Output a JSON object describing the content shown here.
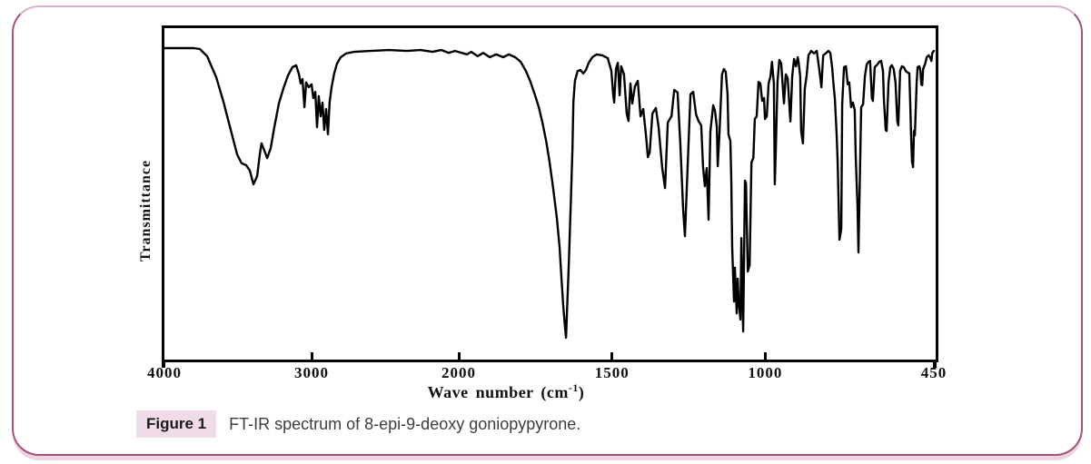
{
  "figure": {
    "caption_label": "Figure 1",
    "caption_text": "FT-IR spectrum of 8-epi-9-deoxy goniopypyrone."
  },
  "theme": {
    "frame_border": "#a4527e",
    "frame_border_top": "#d9b0c9",
    "frame_bottom_band": "#ecd4e2",
    "caption_badge_bg": "#efdce8",
    "line_color": "#000000"
  },
  "chart_data": {
    "type": "line",
    "title": "",
    "xlabel_parts": {
      "prefix": "Wave number (cm",
      "sup": "-1",
      "suffix": ")"
    },
    "ylabel": "Transmittance",
    "x_axis": {
      "ticks": [
        4000,
        3000,
        2000,
        1500,
        1000,
        450
      ],
      "direction": "reversed",
      "scale_note": "split scale: cm-1 compressed 2x above 2000"
    },
    "y_axis": {
      "label": "Transmittance",
      "ticks": [],
      "ylim": [
        0,
        100
      ]
    },
    "grid": false,
    "legend": "none",
    "series": [
      {
        "name": "FT-IR spectrum of 8-epi-9-deoxy goniopypyrone",
        "x_unit": "cm-1",
        "y_unit": "percent transmittance (estimated)",
        "points": [
          [
            4000,
            100
          ],
          [
            3800,
            100
          ],
          [
            3759,
            99.7
          ],
          [
            3710,
            97.4
          ],
          [
            3648,
            90.7
          ],
          [
            3599,
            82.8
          ],
          [
            3543,
            72.7
          ],
          [
            3506,
            66
          ],
          [
            3475,
            63.1
          ],
          [
            3444,
            62.5
          ],
          [
            3420,
            60.8
          ],
          [
            3395,
            56.4
          ],
          [
            3370,
            59
          ],
          [
            3352,
            66
          ],
          [
            3340,
            69.5
          ],
          [
            3321,
            67.2
          ],
          [
            3302,
            64.8
          ],
          [
            3278,
            68
          ],
          [
            3253,
            74.7
          ],
          [
            3222,
            82.3
          ],
          [
            3191,
            87.2
          ],
          [
            3160,
            91.3
          ],
          [
            3130,
            93.9
          ],
          [
            3105,
            94.5
          ],
          [
            3086,
            91.6
          ],
          [
            3074,
            88.7
          ],
          [
            3062,
            90.1
          ],
          [
            3049,
            81.1
          ],
          [
            3037,
            89
          ],
          [
            3019,
            87.5
          ],
          [
            3000,
            88.4
          ],
          [
            2988,
            84
          ],
          [
            2975,
            86
          ],
          [
            2963,
            74.7
          ],
          [
            2951,
            84.6
          ],
          [
            2938,
            78.2
          ],
          [
            2926,
            82.6
          ],
          [
            2914,
            73.8
          ],
          [
            2901,
            80.5
          ],
          [
            2889,
            72.4
          ],
          [
            2877,
            82.8
          ],
          [
            2864,
            87.5
          ],
          [
            2846,
            91.9
          ],
          [
            2827,
            95.1
          ],
          [
            2802,
            97.1
          ],
          [
            2765,
            98.3
          ],
          [
            2710,
            98.8
          ],
          [
            2599,
            99.1
          ],
          [
            2475,
            99.4
          ],
          [
            2352,
            99.1
          ],
          [
            2259,
            99.4
          ],
          [
            2179,
            98.8
          ],
          [
            2117,
            99.4
          ],
          [
            2068,
            98.5
          ],
          [
            2025,
            99.1
          ],
          [
            1991,
            98.5
          ],
          [
            1973,
            98
          ],
          [
            1959,
            98.8
          ],
          [
            1938,
            97.4
          ],
          [
            1920,
            98.5
          ],
          [
            1899,
            97.1
          ],
          [
            1878,
            98
          ],
          [
            1855,
            97.1
          ],
          [
            1837,
            98
          ],
          [
            1816,
            97.1
          ],
          [
            1798,
            95.6
          ],
          [
            1781,
            92.7
          ],
          [
            1766,
            89.2
          ],
          [
            1751,
            84.9
          ],
          [
            1739,
            81.1
          ],
          [
            1727,
            76.2
          ],
          [
            1715,
            70.3
          ],
          [
            1704,
            63.7
          ],
          [
            1692,
            55.2
          ],
          [
            1680,
            45.6
          ],
          [
            1671,
            36.3
          ],
          [
            1665,
            26.7
          ],
          [
            1659,
            17.2
          ],
          [
            1653,
            10.2
          ],
          [
            1650,
            7.3
          ],
          [
            1647,
            15.1
          ],
          [
            1641,
            30.5
          ],
          [
            1635,
            49.1
          ],
          [
            1629,
            68
          ],
          [
            1626,
            82.8
          ],
          [
            1621,
            89.5
          ],
          [
            1612,
            92.7
          ],
          [
            1603,
            93
          ],
          [
            1594,
            91.9
          ],
          [
            1585,
            93
          ],
          [
            1576,
            95.3
          ],
          [
            1564,
            97.1
          ],
          [
            1550,
            98
          ],
          [
            1532,
            97.7
          ],
          [
            1514,
            96.8
          ],
          [
            1502,
            92.7
          ],
          [
            1496,
            84.9
          ],
          [
            1493,
            82.6
          ],
          [
            1487,
            93.3
          ],
          [
            1481,
            95.3
          ],
          [
            1475,
            84.9
          ],
          [
            1470,
            94.2
          ],
          [
            1461,
            91.6
          ],
          [
            1452,
            79.1
          ],
          [
            1446,
            76.7
          ],
          [
            1440,
            88.7
          ],
          [
            1434,
            82.3
          ],
          [
            1425,
            87.8
          ],
          [
            1416,
            89.5
          ],
          [
            1407,
            78.2
          ],
          [
            1398,
            80.5
          ],
          [
            1389,
            71.8
          ],
          [
            1383,
            65.1
          ],
          [
            1377,
            66.6
          ],
          [
            1368,
            79.1
          ],
          [
            1357,
            80.8
          ],
          [
            1348,
            74.7
          ],
          [
            1336,
            61.6
          ],
          [
            1327,
            55.2
          ],
          [
            1318,
            76.2
          ],
          [
            1306,
            78.2
          ],
          [
            1297,
            86.6
          ],
          [
            1286,
            85.8
          ],
          [
            1277,
            68.9
          ],
          [
            1268,
            48.5
          ],
          [
            1262,
            39.8
          ],
          [
            1253,
            63.1
          ],
          [
            1244,
            85.2
          ],
          [
            1235,
            86
          ],
          [
            1226,
            78.8
          ],
          [
            1218,
            76.7
          ],
          [
            1209,
            75.3
          ],
          [
            1203,
            62.2
          ],
          [
            1197,
            55.8
          ],
          [
            1191,
            61.6
          ],
          [
            1185,
            45.1
          ],
          [
            1179,
            73.3
          ],
          [
            1170,
            81.7
          ],
          [
            1164,
            79.9
          ],
          [
            1158,
            74.7
          ],
          [
            1155,
            62.2
          ],
          [
            1149,
            73.3
          ],
          [
            1141,
            91.6
          ],
          [
            1135,
            93.3
          ],
          [
            1129,
            92.4
          ],
          [
            1123,
            85.2
          ],
          [
            1120,
            72.4
          ],
          [
            1114,
            70.3
          ],
          [
            1111,
            58.1
          ],
          [
            1108,
            36.3
          ],
          [
            1102,
            18.9
          ],
          [
            1099,
            29.7
          ],
          [
            1093,
            15.1
          ],
          [
            1090,
            26.2
          ],
          [
            1087,
            18.9
          ],
          [
            1081,
            13.1
          ],
          [
            1078,
            39.2
          ],
          [
            1072,
            9.3
          ],
          [
            1066,
            57.6
          ],
          [
            1063,
            56.7
          ],
          [
            1057,
            28.5
          ],
          [
            1051,
            30.5
          ],
          [
            1045,
            63.4
          ],
          [
            1039,
            64.8
          ],
          [
            1034,
            77.3
          ],
          [
            1028,
            78.2
          ],
          [
            1022,
            89.2
          ],
          [
            1016,
            88.7
          ],
          [
            1010,
            83.1
          ],
          [
            1004,
            84
          ],
          [
            1001,
            77.3
          ],
          [
            995,
            78.2
          ],
          [
            989,
            88.7
          ],
          [
            983,
            91
          ],
          [
            978,
            95.6
          ],
          [
            972,
            88.7
          ],
          [
            969,
            56.4
          ],
          [
            966,
            66
          ],
          [
            960,
            89.2
          ],
          [
            954,
            96.2
          ],
          [
            948,
            95.1
          ],
          [
            942,
            86.3
          ],
          [
            939,
            82.3
          ],
          [
            933,
            91.6
          ],
          [
            927,
            90.4
          ],
          [
            921,
            81.1
          ],
          [
            918,
            76.5
          ],
          [
            912,
            91
          ],
          [
            906,
            96.5
          ],
          [
            900,
            94.2
          ],
          [
            894,
            97.1
          ],
          [
            891,
            95.3
          ],
          [
            886,
            91
          ],
          [
            883,
            73.5
          ],
          [
            877,
            69.5
          ],
          [
            871,
            86.9
          ],
          [
            865,
            91.3
          ],
          [
            859,
            97.7
          ],
          [
            850,
            99.1
          ],
          [
            841,
            98.3
          ],
          [
            832,
            99.1
          ],
          [
            823,
            92.7
          ],
          [
            817,
            87.5
          ],
          [
            811,
            97.7
          ],
          [
            803,
            98.3
          ],
          [
            794,
            99.1
          ],
          [
            788,
            98.5
          ],
          [
            782,
            93.9
          ],
          [
            776,
            86.9
          ],
          [
            773,
            84
          ],
          [
            767,
            72.4
          ],
          [
            764,
            63.7
          ],
          [
            758,
            38.7
          ],
          [
            752,
            42.2
          ],
          [
            749,
            82
          ],
          [
            743,
            93.9
          ],
          [
            737,
            94.2
          ],
          [
            731,
            88.4
          ],
          [
            726,
            89
          ],
          [
            720,
            81.1
          ],
          [
            714,
            82.6
          ],
          [
            708,
            80.2
          ],
          [
            705,
            65.4
          ],
          [
            699,
            49.1
          ],
          [
            696,
            34.6
          ],
          [
            690,
            65.4
          ],
          [
            687,
            81.1
          ],
          [
            681,
            82
          ],
          [
            675,
            91
          ],
          [
            669,
            94.8
          ],
          [
            663,
            95.6
          ],
          [
            658,
            95.9
          ],
          [
            652,
            84
          ],
          [
            649,
            83.1
          ],
          [
            643,
            93.9
          ],
          [
            634,
            94.8
          ],
          [
            628,
            95.6
          ],
          [
            622,
            95.9
          ],
          [
            616,
            92.7
          ],
          [
            613,
            83.7
          ],
          [
            607,
            73.8
          ],
          [
            604,
            73.5
          ],
          [
            598,
            89
          ],
          [
            592,
            93.9
          ],
          [
            587,
            94.5
          ],
          [
            581,
            93.3
          ],
          [
            575,
            89
          ],
          [
            569,
            76.5
          ],
          [
            566,
            75.3
          ],
          [
            560,
            92.7
          ],
          [
            554,
            94.2
          ],
          [
            548,
            93.9
          ],
          [
            542,
            92.7
          ],
          [
            539,
            92.4
          ],
          [
            530,
            91.9
          ],
          [
            527,
            82.3
          ],
          [
            524,
            71.5
          ],
          [
            521,
            63.7
          ],
          [
            518,
            61.9
          ],
          [
            515,
            73.5
          ],
          [
            512,
            72.1
          ],
          [
            506,
            89
          ],
          [
            503,
            93.9
          ],
          [
            497,
            94.2
          ],
          [
            494,
            92.7
          ],
          [
            491,
            88.4
          ],
          [
            488,
            88.1
          ],
          [
            485,
            93.3
          ],
          [
            479,
            94.8
          ],
          [
            473,
            97.1
          ],
          [
            467,
            97.7
          ],
          [
            461,
            96.8
          ],
          [
            458,
            95.9
          ],
          [
            455,
            98.5
          ],
          [
            450,
            99.1
          ]
        ]
      }
    ]
  }
}
